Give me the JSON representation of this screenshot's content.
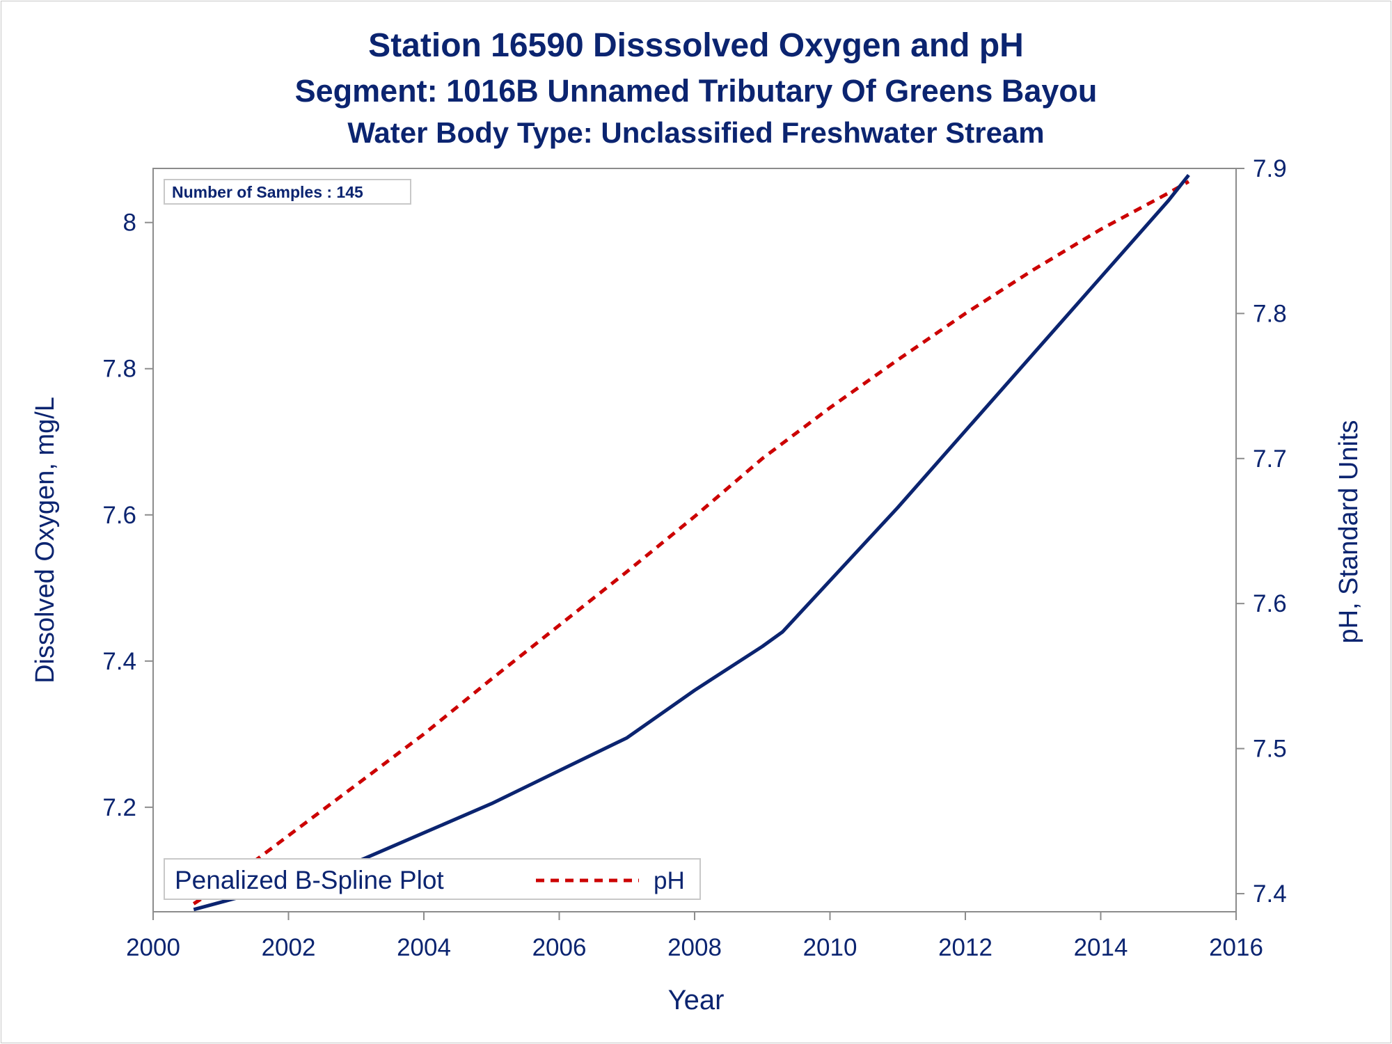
{
  "titles": {
    "line1": "Station 16590    Disssolved Oxygen and pH",
    "line2": "Segment: 1016B  Unnamed Tributary Of Greens Bayou",
    "line3": "Water Body Type: Unclassified Freshwater Stream"
  },
  "inset": {
    "label": "Number of Samples : 145"
  },
  "colors": {
    "text": "#0b2470",
    "do_line": "#0b2470",
    "ph_line": "#cc0000",
    "axis": "#8c8c8c"
  },
  "chart_data": {
    "type": "line",
    "xlabel": "Year",
    "ylabel": "Dissolved Oxygen, mg/L",
    "y2label": "pH, Standard Units",
    "xlim": [
      2000,
      2016
    ],
    "ylim": [
      7.057,
      8.074
    ],
    "y2lim": [
      7.3875,
      7.9
    ],
    "xticks": [
      "2000",
      "2002",
      "2004",
      "2006",
      "2008",
      "2010",
      "2012",
      "2014",
      "2016"
    ],
    "yticks": [
      "7.2",
      "7.4",
      "7.6",
      "7.8",
      "8"
    ],
    "y2ticks": [
      "7.4",
      "7.5",
      "7.6",
      "7.7",
      "7.8",
      "7.9"
    ],
    "legend": {
      "placement": "bottom-left",
      "entries": [
        "Penalized B-Spline Plot",
        "pH"
      ]
    },
    "series": [
      {
        "name": "Penalized B-Spline Plot",
        "axis": "left",
        "style": "solid",
        "x": [
          2000.6,
          2001.0,
          2002.0,
          2003.0,
          2004.0,
          2005.0,
          2006.0,
          2007.0,
          2008.0,
          2009.0,
          2009.3,
          2010.0,
          2011.0,
          2012.0,
          2013.0,
          2014.0,
          2015.0,
          2015.3
        ],
        "values": [
          7.06,
          7.07,
          7.095,
          7.125,
          7.165,
          7.205,
          7.25,
          7.295,
          7.36,
          7.42,
          7.44,
          7.51,
          7.61,
          7.715,
          7.82,
          7.925,
          8.03,
          8.065
        ]
      },
      {
        "name": "pH",
        "axis": "right",
        "style": "dashed",
        "x": [
          2000.6,
          2001.0,
          2002.0,
          2003.0,
          2004.0,
          2005.0,
          2006.0,
          2007.0,
          2008.0,
          2009.0,
          2010.0,
          2011.0,
          2012.0,
          2013.0,
          2014.0,
          2015.0,
          2015.3
        ],
        "values": [
          7.393,
          7.405,
          7.44,
          7.475,
          7.51,
          7.548,
          7.585,
          7.622,
          7.66,
          7.7,
          7.735,
          7.768,
          7.8,
          7.83,
          7.858,
          7.883,
          7.891
        ]
      }
    ]
  }
}
